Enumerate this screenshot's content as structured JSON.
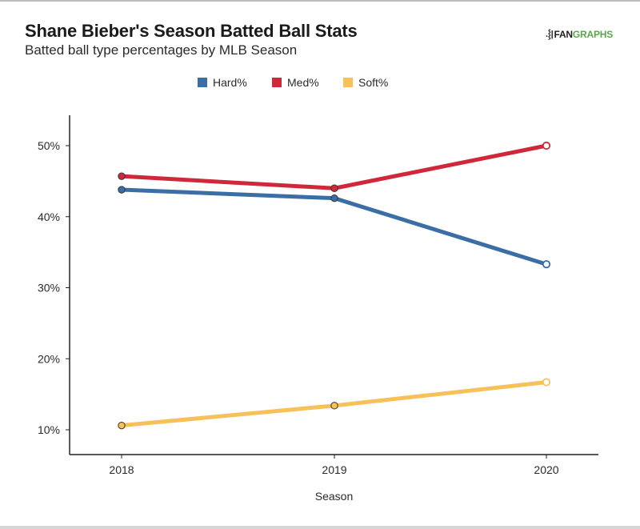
{
  "header": {
    "title": "Shane Bieber's Season Batted Ball Stats",
    "subtitle": "Batted ball type percentages by MLB Season",
    "logo_text_dark": "FAN",
    "logo_text_green": "GRAPHS",
    "logo_icon": "fangraphs-logo-icon"
  },
  "chart_data": {
    "type": "line",
    "title": "Shane Bieber's Season Batted Ball Stats",
    "subtitle": "Batted ball type percentages by MLB Season",
    "xlabel": "Season",
    "ylabel": "",
    "x": [
      "2018",
      "2019",
      "2020"
    ],
    "ylim": [
      7,
      54.3
    ],
    "yticks": [
      10,
      20,
      30,
      40,
      50
    ],
    "ytick_labels": [
      "10%",
      "20%",
      "30%",
      "40%",
      "50%"
    ],
    "grid": false,
    "legend_position": "top-center",
    "series": [
      {
        "name": "Hard%",
        "color": "#3a6ea5",
        "values": [
          43.8,
          42.6,
          33.3
        ]
      },
      {
        "name": "Med%",
        "color": "#d0283b",
        "values": [
          45.7,
          44.0,
          50.0
        ]
      },
      {
        "name": "Soft%",
        "color": "#f7c15a",
        "values": [
          10.6,
          13.4,
          16.7
        ]
      }
    ],
    "last_point_hollow": true
  }
}
